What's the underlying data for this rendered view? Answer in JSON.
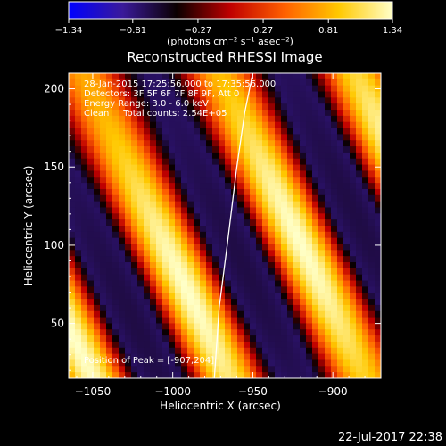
{
  "chart_data": {
    "type": "heatmap",
    "title": "Reconstructed RHESSI Image",
    "xlabel": "Heliocentric X (arcsec)",
    "ylabel": "Heliocentric Y (arcsec)",
    "xlim": [
      -1065,
      -870
    ],
    "ylim": [
      15,
      210
    ],
    "x_ticks": [
      -1050,
      -1000,
      -950,
      -900
    ],
    "y_ticks": [
      50,
      100,
      150,
      200
    ],
    "colorbar": {
      "min": -1.34,
      "max": 1.34,
      "ticks": [
        -1.34,
        -0.81,
        -0.27,
        0.27,
        0.81,
        1.34
      ],
      "tick_labels": [
        "−1.34",
        "−0.81",
        "−0.27",
        "0.27",
        "0.81",
        "1.34"
      ],
      "unit_label": "(photons cm⁻² s⁻¹ asec⁻²)"
    },
    "annotations": [
      "28-Jan-2015 17:25:56.000 to 17:35:56.000",
      "Detectors: 3F 5F 6F 7F 8F 9F, Att 0",
      "Energy Range: 3.0 - 6.0 keV",
      "Clean     Total counts: 2.54E+05"
    ],
    "peak_label": "Position of Peak = [-907,204]",
    "peak": [
      -907,
      204
    ],
    "limb_curve": [
      [
        -974,
        15
      ],
      [
        -971,
        60
      ],
      [
        -966,
        100
      ],
      [
        -960,
        150
      ],
      [
        -955,
        185
      ],
      [
        -950,
        210
      ]
    ],
    "colormap": [
      "#0000ff",
      "#3a1a9a",
      "#0a0000",
      "#c00000",
      "#ff6000",
      "#ffc800",
      "#ffffc8"
    ],
    "axis_color": "#ffffff"
  },
  "footer": {
    "timestamp": "22-Jul-2017 22:38"
  }
}
